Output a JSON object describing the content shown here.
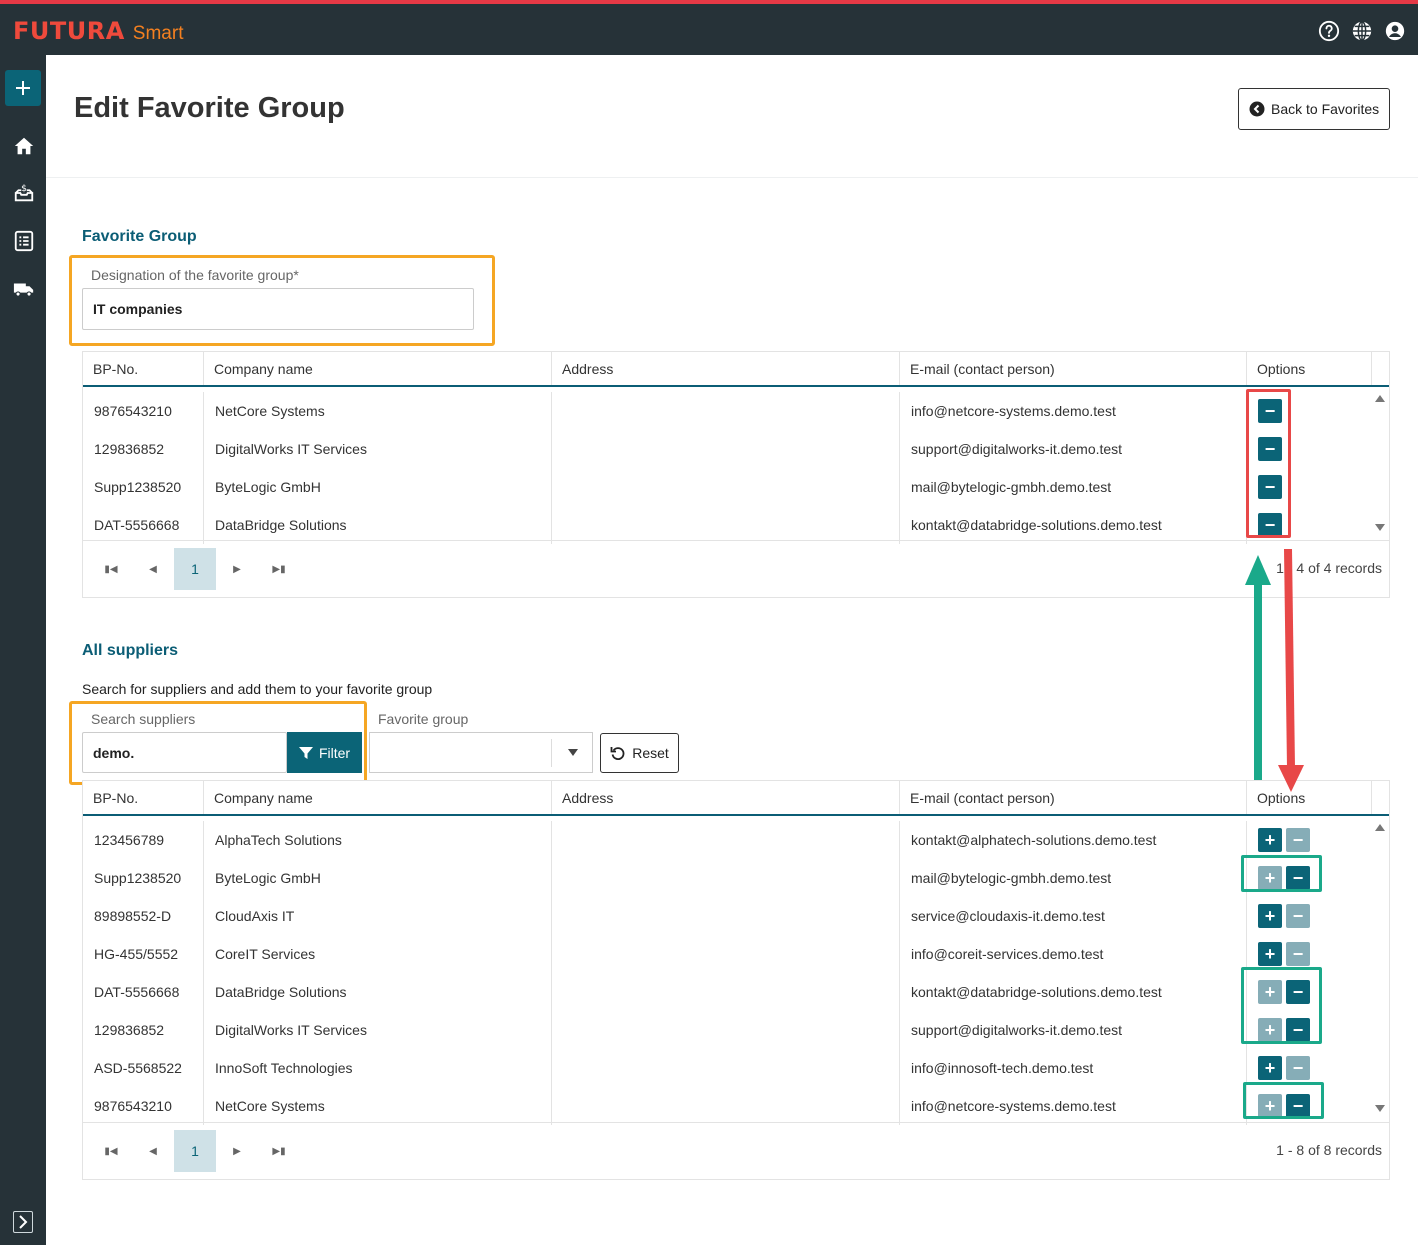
{
  "app": {
    "logo_main": "FUTURA",
    "logo_sub": "Smart"
  },
  "topbar": {
    "icons": [
      "help-icon",
      "globe-icon",
      "user-icon"
    ]
  },
  "sidebar": {
    "items": [
      "add-icon",
      "home-icon",
      "inbox-dollar-icon",
      "checklist-icon",
      "truck-icon"
    ],
    "expand": "chevron-right-icon"
  },
  "page": {
    "title": "Edit Favorite Group",
    "back_label": "Back to Favorites"
  },
  "favorite_group": {
    "section_title": "Favorite Group",
    "designation_label": "Designation of the favorite group",
    "required_mark": "*",
    "designation_value": "IT companies"
  },
  "columns": {
    "bp": "BP-No.",
    "company": "Company name",
    "address": "Address",
    "email": "E-mail (contact person)",
    "options": "Options"
  },
  "group_table": {
    "rows": [
      {
        "bp": "9876543210",
        "company": "NetCore Systems",
        "address": "",
        "email": "info@netcore-systems.demo.test"
      },
      {
        "bp": "129836852",
        "company": "DigitalWorks IT Services",
        "address": "",
        "email": "support@digitalworks-it.demo.test"
      },
      {
        "bp": "Supp1238520",
        "company": "ByteLogic GmbH",
        "address": "",
        "email": "mail@bytelogic-gmbh.demo.test"
      },
      {
        "bp": "DAT-5556668",
        "company": "DataBridge Solutions",
        "address": "",
        "email": "kontakt@databridge-solutions.demo.test"
      }
    ],
    "page": "1",
    "records": "1 - 4 of 4 records"
  },
  "all_suppliers": {
    "section_title": "All suppliers",
    "description": "Search for suppliers and add them to your favorite group",
    "search_label": "Search suppliers",
    "search_value": "demo.",
    "filter_label": "Filter",
    "favorite_group_label": "Favorite group",
    "favorite_group_value": "",
    "reset_label": "Reset"
  },
  "suppliers_table": {
    "rows": [
      {
        "bp": "123456789",
        "company": "AlphaTech Solutions",
        "address": "",
        "email": "kontakt@alphatech-solutions.demo.test",
        "in_group": false
      },
      {
        "bp": "Supp1238520",
        "company": "ByteLogic GmbH",
        "address": "",
        "email": "mail@bytelogic-gmbh.demo.test",
        "in_group": true
      },
      {
        "bp": "89898552-D",
        "company": "CloudAxis IT",
        "address": "",
        "email": "service@cloudaxis-it.demo.test",
        "in_group": false
      },
      {
        "bp": "HG-455/5552",
        "company": "CoreIT Services",
        "address": "",
        "email": "info@coreit-services.demo.test",
        "in_group": false
      },
      {
        "bp": "DAT-5556668",
        "company": "DataBridge Solutions",
        "address": "",
        "email": "kontakt@databridge-solutions.demo.test",
        "in_group": true
      },
      {
        "bp": "129836852",
        "company": "DigitalWorks IT Services",
        "address": "",
        "email": "support@digitalworks-it.demo.test",
        "in_group": true
      },
      {
        "bp": "ASD-5568522",
        "company": "InnoSoft Technologies",
        "address": "",
        "email": "info@innosoft-tech.demo.test",
        "in_group": false
      },
      {
        "bp": "9876543210",
        "company": "NetCore Systems",
        "address": "",
        "email": "info@netcore-systems.demo.test",
        "in_group": true
      }
    ],
    "page": "1",
    "records": "1 - 8 of 8 records"
  },
  "colors": {
    "accent": "#0b6477",
    "highlight_orange": "#f5a623",
    "highlight_red": "#e84848",
    "highlight_green": "#1aa98a"
  }
}
